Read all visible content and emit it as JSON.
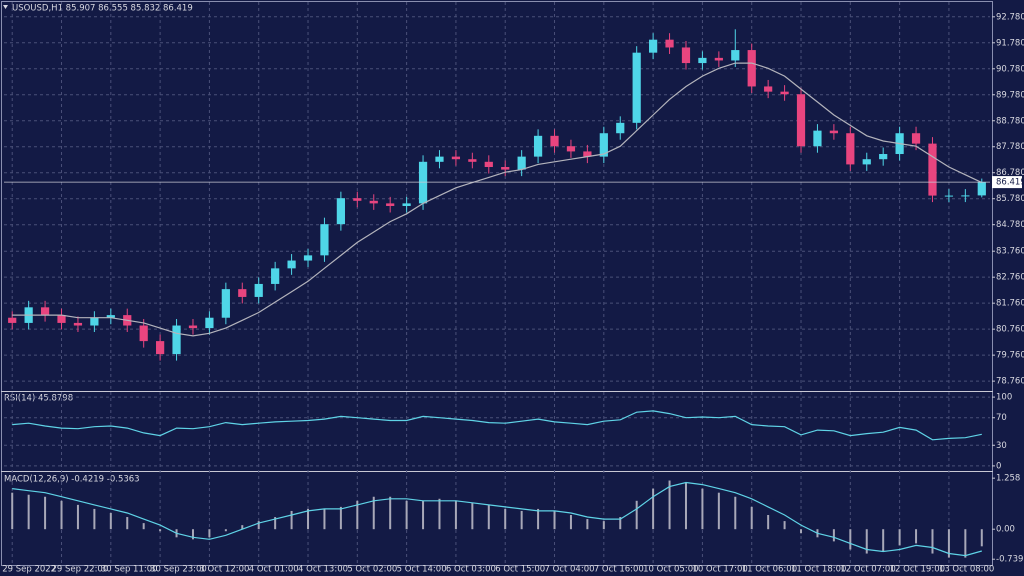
{
  "chart_data": [
    {
      "type": "candlestick",
      "title": "USOUSD,H1  85.907 86.555 85.832 86.419",
      "categories": [
        "29 Sep 2022",
        null,
        null,
        "29 Sep 22:00",
        null,
        null,
        "30 Sep 11:00",
        null,
        null,
        "30 Sep 23:00",
        null,
        null,
        "3 Oct 12:00",
        null,
        null,
        "4 Oct 01:00",
        null,
        null,
        "4 Oct 13:00",
        null,
        null,
        "5 Oct 02:00",
        null,
        null,
        "5 Oct 14:00",
        null,
        null,
        "6 Oct 03:00",
        null,
        null,
        "6 Oct 15:00",
        null,
        null,
        "7 Oct 04:00",
        null,
        null,
        "7 Oct 16:00",
        null,
        null,
        "10 Oct 05:00",
        null,
        null,
        "10 Oct 17:00",
        null,
        null,
        "11 Oct 06:00",
        null,
        null,
        "11 Oct 18:00",
        null,
        null,
        "12 Oct 07:00",
        null,
        null,
        "12 Oct 19:00",
        null,
        null,
        "13 Oct 08:00",
        null,
        null
      ],
      "open": [
        81.2,
        81.0,
        81.6,
        81.3,
        81.0,
        80.9,
        81.2,
        81.3,
        80.9,
        80.3,
        79.8,
        80.9,
        80.8,
        81.2,
        82.3,
        82.0,
        82.5,
        83.1,
        83.4,
        83.6,
        84.8,
        85.8,
        85.7,
        85.6,
        85.5,
        85.6,
        87.2,
        87.4,
        87.3,
        87.2,
        87.0,
        86.9,
        87.4,
        88.2,
        87.8,
        87.6,
        87.4,
        88.3,
        88.7,
        91.4,
        91.9,
        91.6,
        91.0,
        91.2,
        91.1,
        91.5,
        90.1,
        89.9,
        89.8,
        87.8,
        88.4,
        88.3,
        87.1,
        87.3,
        87.5,
        88.3,
        87.9,
        85.9,
        85.9,
        85.907
      ],
      "high": [
        81.45,
        81.85,
        81.85,
        81.55,
        81.25,
        81.45,
        81.55,
        81.55,
        81.15,
        80.55,
        81.15,
        81.15,
        81.45,
        82.55,
        82.55,
        82.75,
        83.35,
        83.65,
        83.85,
        85.05,
        86.05,
        86.05,
        85.95,
        85.85,
        85.85,
        87.45,
        87.65,
        87.65,
        87.55,
        87.45,
        87.25,
        87.65,
        88.45,
        88.45,
        88.05,
        87.85,
        88.55,
        88.95,
        91.65,
        92.15,
        92.15,
        91.85,
        91.45,
        91.45,
        92.3,
        91.75,
        90.35,
        90.15,
        90.05,
        88.65,
        88.65,
        88.55,
        87.55,
        87.75,
        88.55,
        88.55,
        88.15,
        86.15,
        86.15,
        86.555
      ],
      "low": [
        80.75,
        80.75,
        81.05,
        80.75,
        80.65,
        80.65,
        80.95,
        80.65,
        80.05,
        79.55,
        79.55,
        80.55,
        80.55,
        80.95,
        81.75,
        81.75,
        82.25,
        82.85,
        83.15,
        83.35,
        84.55,
        85.45,
        85.35,
        85.25,
        85.25,
        85.35,
        86.95,
        87.05,
        86.95,
        86.75,
        86.65,
        86.65,
        87.15,
        87.55,
        87.35,
        87.15,
        87.15,
        88.05,
        88.45,
        91.15,
        91.35,
        90.75,
        90.75,
        90.85,
        90.85,
        89.85,
        89.65,
        89.55,
        87.55,
        87.55,
        88.05,
        86.85,
        86.85,
        87.05,
        87.25,
        87.65,
        85.65,
        85.65,
        85.65,
        85.832
      ],
      "close": [
        81.0,
        81.6,
        81.3,
        81.0,
        80.9,
        81.2,
        81.3,
        80.9,
        80.3,
        79.8,
        80.9,
        80.8,
        81.2,
        82.3,
        82.0,
        82.5,
        83.1,
        83.4,
        83.6,
        84.8,
        85.8,
        85.7,
        85.6,
        85.5,
        85.6,
        87.2,
        87.4,
        87.3,
        87.2,
        87.0,
        86.9,
        87.4,
        88.2,
        87.8,
        87.6,
        87.4,
        88.3,
        88.7,
        91.4,
        91.9,
        91.6,
        91.0,
        91.2,
        91.1,
        91.5,
        90.1,
        89.9,
        89.8,
        87.8,
        88.4,
        88.3,
        87.1,
        87.3,
        87.5,
        88.3,
        87.9,
        85.9,
        85.9,
        85.907,
        86.419
      ],
      "ma": {
        "color": "#b4b4bc",
        "values": [
          81.3,
          81.3,
          81.3,
          81.3,
          81.2,
          81.2,
          81.2,
          81.1,
          81.0,
          80.8,
          80.6,
          80.5,
          80.6,
          80.8,
          81.1,
          81.4,
          81.8,
          82.2,
          82.6,
          83.1,
          83.6,
          84.1,
          84.5,
          84.9,
          85.2,
          85.6,
          85.9,
          86.2,
          86.4,
          86.6,
          86.8,
          86.9,
          87.1,
          87.2,
          87.3,
          87.4,
          87.5,
          87.8,
          88.4,
          89.0,
          89.6,
          90.1,
          90.5,
          90.8,
          91.0,
          91.0,
          90.8,
          90.5,
          90.0,
          89.5,
          89.0,
          88.6,
          88.2,
          88.0,
          87.9,
          87.8,
          87.4,
          87.0,
          86.7,
          86.4
        ]
      },
      "up_color": "#4fd6e8",
      "down_color": "#e8457f",
      "ylim": [
        78.38,
        93.35
      ],
      "yticks": [
        {
          "value": 92.78,
          "label": "92.780"
        },
        {
          "value": 91.78,
          "label": "91.780"
        },
        {
          "value": 90.78,
          "label": "90.780"
        },
        {
          "value": 89.78,
          "label": "89.780"
        },
        {
          "value": 88.78,
          "label": "88.780"
        },
        {
          "value": 87.78,
          "label": "87.780"
        },
        {
          "value": 86.78,
          "label": "86.780"
        },
        {
          "value": 85.78,
          "label": "85.780"
        },
        {
          "value": 84.78,
          "label": "84.780"
        },
        {
          "value": 83.76,
          "label": "83.760"
        },
        {
          "value": 82.76,
          "label": "82.760"
        },
        {
          "value": 81.76,
          "label": "81.760"
        },
        {
          "value": 80.76,
          "label": "80.760"
        },
        {
          "value": 79.76,
          "label": "79.760"
        },
        {
          "value": 78.76,
          "label": "78.760"
        }
      ],
      "grid": true
    },
    {
      "type": "line",
      "title": "RSI(14) 45.8798",
      "color": "#5fd3e6",
      "values": [
        60,
        62,
        58,
        55,
        54,
        57,
        58,
        55,
        48,
        44,
        55,
        54,
        57,
        63,
        60,
        62,
        64,
        65,
        66,
        68,
        72,
        70,
        68,
        66,
        66,
        72,
        70,
        68,
        66,
        63,
        62,
        65,
        68,
        64,
        62,
        60,
        65,
        67,
        78,
        80,
        76,
        70,
        71,
        70,
        72,
        60,
        58,
        57,
        45,
        52,
        51,
        44,
        47,
        49,
        56,
        52,
        38,
        40,
        41,
        45.8798
      ],
      "ylim": [
        -7.4,
        107.4
      ],
      "yticks": [
        100,
        70,
        30,
        0
      ]
    },
    {
      "type": "macd",
      "title": "MACD(12,26,9) -0.4219 -0.5363",
      "histogram": {
        "color": "#a8a8b8",
        "values": [
          0.9,
          0.85,
          0.8,
          0.7,
          0.6,
          0.5,
          0.4,
          0.3,
          0.15,
          -0.05,
          -0.2,
          -0.25,
          -0.2,
          -0.05,
          0.1,
          0.2,
          0.3,
          0.45,
          0.5,
          0.5,
          0.55,
          0.7,
          0.8,
          0.8,
          0.7,
          0.7,
          0.75,
          0.7,
          0.65,
          0.6,
          0.5,
          0.45,
          0.5,
          0.45,
          0.35,
          0.25,
          0.2,
          0.3,
          0.7,
          1.0,
          1.2,
          1.15,
          1.0,
          0.9,
          0.8,
          0.55,
          0.35,
          0.2,
          -0.1,
          -0.2,
          -0.3,
          -0.5,
          -0.6,
          -0.55,
          -0.4,
          -0.35,
          -0.6,
          -0.7,
          -0.7,
          -0.4219
        ]
      },
      "signal": {
        "color": "#5fd3e6",
        "values": [
          1.0,
          0.95,
          0.9,
          0.8,
          0.7,
          0.6,
          0.5,
          0.4,
          0.25,
          0.1,
          -0.1,
          -0.2,
          -0.25,
          -0.15,
          0.0,
          0.15,
          0.25,
          0.35,
          0.45,
          0.5,
          0.5,
          0.6,
          0.7,
          0.75,
          0.75,
          0.7,
          0.7,
          0.7,
          0.65,
          0.6,
          0.55,
          0.5,
          0.45,
          0.45,
          0.4,
          0.3,
          0.25,
          0.25,
          0.5,
          0.8,
          1.05,
          1.15,
          1.1,
          1.0,
          0.9,
          0.75,
          0.55,
          0.35,
          0.1,
          -0.1,
          -0.2,
          -0.35,
          -0.5,
          -0.55,
          -0.5,
          -0.4,
          -0.45,
          -0.6,
          -0.65,
          -0.5363
        ]
      },
      "ylim": [
        -0.907,
        1.41
      ],
      "yticks": [
        1.258,
        {
          "value": 0,
          "label": "0.00"
        },
        -0.7395
      ]
    }
  ]
}
